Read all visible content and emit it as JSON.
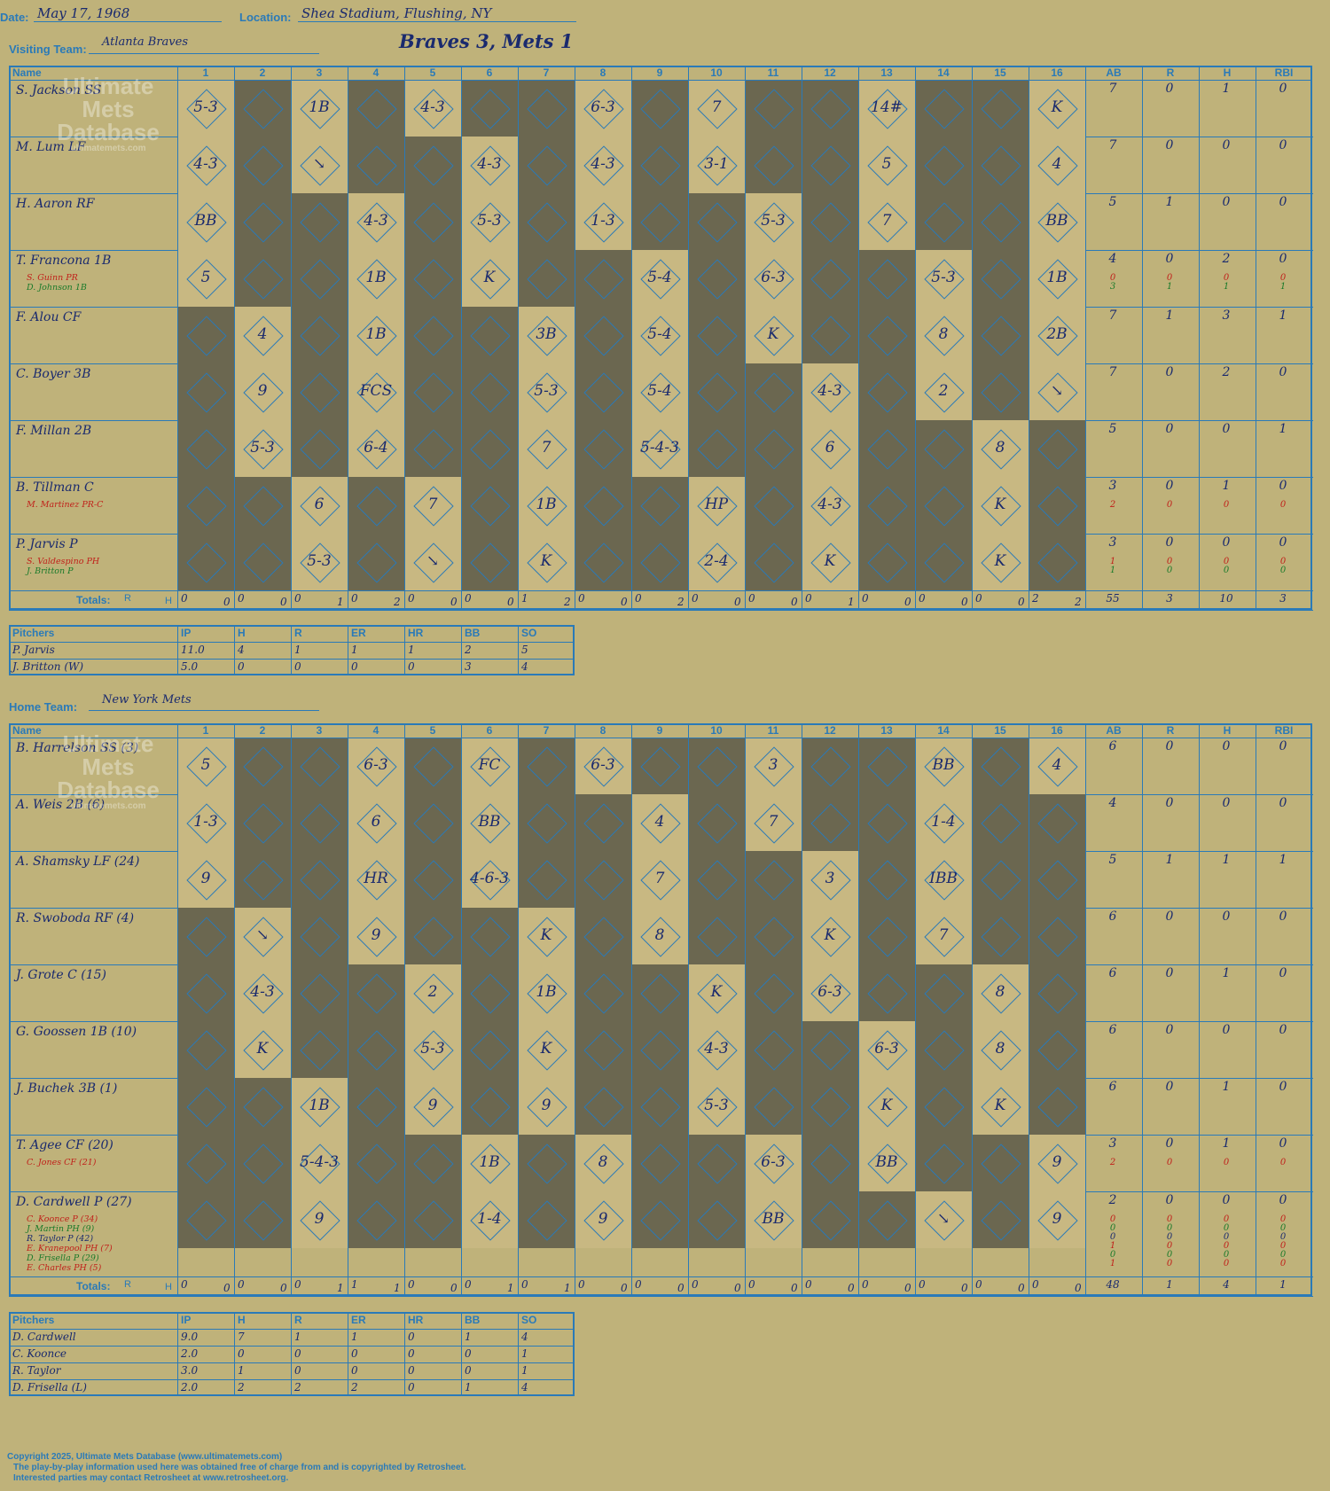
{
  "header": {
    "date_label": "Date:",
    "date": "May 17, 1968",
    "location_label": "Location:",
    "location": "Shea Stadium, Flushing, NY",
    "visiting_label": "Visiting Team:",
    "visiting_team": "Atlanta Braves",
    "home_label": "Home Team:",
    "home_team": "New York Mets",
    "title": "Braves 3, Mets 1"
  },
  "watermark": {
    "line1": "Ultimate",
    "line2": "Mets",
    "line3": "Database",
    "url": "ultimatemets.com"
  },
  "grid_headers": {
    "name": "Name",
    "innings": [
      "1",
      "2",
      "3",
      "4",
      "5",
      "6",
      "7",
      "8",
      "9",
      "10",
      "11",
      "12",
      "13",
      "14",
      "15",
      "16"
    ],
    "stats": [
      "AB",
      "R",
      "H",
      "RBI"
    ],
    "totals": "Totals:",
    "r": "R",
    "h": "H"
  },
  "visitors": {
    "players": [
      {
        "name": "S. Jackson SS",
        "subs": [],
        "stats": [
          [
            "7",
            "0",
            "1",
            "0"
          ]
        ]
      },
      {
        "name": "M. Lum LF",
        "subs": [],
        "stats": [
          [
            "7",
            "0",
            "0",
            "0"
          ]
        ]
      },
      {
        "name": "H. Aaron RF",
        "subs": [],
        "stats": [
          [
            "5",
            "1",
            "0",
            "0"
          ]
        ]
      },
      {
        "name": "T. Francona 1B",
        "subs": [
          {
            "name": "S. Guinn PR",
            "color": "#c0201a"
          },
          {
            "name": "D. Johnson 1B",
            "color": "#1a7a2a"
          }
        ],
        "stats": [
          [
            "4",
            "0",
            "2",
            "0"
          ],
          [
            "0",
            "0",
            "0",
            "0"
          ],
          [
            "3",
            "1",
            "1",
            "1"
          ]
        ]
      },
      {
        "name": "F. Alou CF",
        "subs": [],
        "stats": [
          [
            "7",
            "1",
            "3",
            "1"
          ]
        ]
      },
      {
        "name": "C. Boyer 3B",
        "subs": [],
        "stats": [
          [
            "7",
            "0",
            "2",
            "0"
          ]
        ]
      },
      {
        "name": "F. Millan 2B",
        "subs": [],
        "stats": [
          [
            "5",
            "0",
            "0",
            "1"
          ]
        ]
      },
      {
        "name": "B. Tillman C",
        "subs": [
          {
            "name": "M. Martinez PR-C",
            "color": "#c0201a"
          }
        ],
        "stats": [
          [
            "3",
            "0",
            "1",
            "0"
          ],
          [
            "2",
            "0",
            "0",
            "0"
          ]
        ]
      },
      {
        "name": "P. Jarvis P",
        "subs": [
          {
            "name": "S. Valdespino PH",
            "color": "#c0201a"
          },
          {
            "name": "J. Britton P",
            "color": "#1a7a2a"
          }
        ],
        "stats": [
          [
            "3",
            "0",
            "0",
            "0"
          ],
          [
            "1",
            "0",
            "0",
            "0"
          ],
          [
            "1",
            "0",
            "0",
            "0"
          ]
        ]
      }
    ],
    "plays": [
      [
        [
          1,
          "5-3"
        ],
        [
          3,
          "1B"
        ],
        [
          5,
          "4-3"
        ],
        [
          8,
          "6-3"
        ],
        [
          10,
          "7"
        ],
        [
          13,
          "14#"
        ],
        [
          16,
          "K"
        ]
      ],
      [
        [
          1,
          "4-3"
        ],
        [
          3,
          "↘"
        ],
        [
          6,
          "4-3"
        ],
        [
          8,
          "4-3"
        ],
        [
          10,
          "3-1"
        ],
        [
          13,
          "5"
        ],
        [
          16,
          "4"
        ]
      ],
      [
        [
          1,
          "BB"
        ],
        [
          4,
          "4-3"
        ],
        [
          6,
          "5-3"
        ],
        [
          8,
          "1-3"
        ],
        [
          11,
          "5-3"
        ],
        [
          13,
          "7"
        ],
        [
          16,
          "BB"
        ]
      ],
      [
        [
          1,
          "5"
        ],
        [
          4,
          "1B"
        ],
        [
          6,
          "K"
        ],
        [
          9,
          "5-4"
        ],
        [
          11,
          "6-3"
        ],
        [
          14,
          "5-3"
        ],
        [
          16,
          "1B"
        ]
      ],
      [
        [
          2,
          "4"
        ],
        [
          4,
          "1B"
        ],
        [
          7,
          "3B"
        ],
        [
          9,
          "5-4"
        ],
        [
          11,
          "K"
        ],
        [
          14,
          "8"
        ],
        [
          16,
          "2B"
        ]
      ],
      [
        [
          2,
          "9"
        ],
        [
          4,
          "FCS"
        ],
        [
          7,
          "5-3"
        ],
        [
          9,
          "5-4"
        ],
        [
          12,
          "4-3"
        ],
        [
          14,
          "2"
        ],
        [
          16,
          "↘"
        ]
      ],
      [
        [
          2,
          "5-3"
        ],
        [
          4,
          "6-4"
        ],
        [
          7,
          "7"
        ],
        [
          9,
          "5-4-3"
        ],
        [
          12,
          "6"
        ],
        [
          15,
          "8"
        ]
      ],
      [
        [
          3,
          "6"
        ],
        [
          5,
          "7"
        ],
        [
          7,
          "1B"
        ],
        [
          10,
          "HP"
        ],
        [
          12,
          "4-3"
        ],
        [
          15,
          "K"
        ]
      ],
      [
        [
          3,
          "5-3"
        ],
        [
          5,
          "↘"
        ],
        [
          7,
          "K"
        ],
        [
          10,
          "2-4"
        ],
        [
          12,
          "K"
        ],
        [
          15,
          "K"
        ]
      ]
    ],
    "totals": {
      "innings": [
        [
          "0",
          "0"
        ],
        [
          "0",
          "0"
        ],
        [
          "0",
          "1"
        ],
        [
          "0",
          "2"
        ],
        [
          "0",
          "0"
        ],
        [
          "0",
          "0"
        ],
        [
          "1",
          "2"
        ],
        [
          "0",
          "0"
        ],
        [
          "0",
          "2"
        ],
        [
          "0",
          "0"
        ],
        [
          "0",
          "0"
        ],
        [
          "0",
          "1"
        ],
        [
          "0",
          "0"
        ],
        [
          "0",
          "0"
        ],
        [
          "0",
          "0"
        ],
        [
          "2",
          "2"
        ]
      ],
      "stats": [
        "55",
        "3",
        "10",
        "3"
      ]
    },
    "pitchers": {
      "headers": [
        "Pitchers",
        "IP",
        "H",
        "R",
        "ER",
        "HR",
        "BB",
        "SO"
      ],
      "rows": [
        [
          "P. Jarvis",
          "11.0",
          "4",
          "1",
          "1",
          "1",
          "2",
          "5"
        ],
        [
          "J. Britton (W)",
          "5.0",
          "0",
          "0",
          "0",
          "0",
          "3",
          "4"
        ]
      ]
    }
  },
  "home": {
    "players": [
      {
        "name": "B. Harrelson SS (3)",
        "subs": [],
        "stats": [
          [
            "6",
            "0",
            "0",
            "0"
          ]
        ]
      },
      {
        "name": "A. Weis 2B (6)",
        "subs": [],
        "stats": [
          [
            "4",
            "0",
            "0",
            "0"
          ]
        ]
      },
      {
        "name": "A. Shamsky LF (24)",
        "subs": [],
        "stats": [
          [
            "5",
            "1",
            "1",
            "1"
          ]
        ]
      },
      {
        "name": "R. Swoboda RF (4)",
        "subs": [],
        "stats": [
          [
            "6",
            "0",
            "0",
            "0"
          ]
        ]
      },
      {
        "name": "J. Grote C (15)",
        "subs": [],
        "stats": [
          [
            "6",
            "0",
            "1",
            "0"
          ]
        ]
      },
      {
        "name": "G. Goossen 1B (10)",
        "subs": [],
        "stats": [
          [
            "6",
            "0",
            "0",
            "0"
          ]
        ]
      },
      {
        "name": "J. Buchek 3B (1)",
        "subs": [],
        "stats": [
          [
            "6",
            "0",
            "1",
            "0"
          ]
        ]
      },
      {
        "name": "T. Agee CF (20)",
        "subs": [
          {
            "name": "C. Jones CF (21)",
            "color": "#c0201a"
          }
        ],
        "stats": [
          [
            "3",
            "0",
            "1",
            "0"
          ],
          [
            "2",
            "0",
            "0",
            "0"
          ]
        ]
      },
      {
        "name": "D. Cardwell P (27)",
        "subs": [
          {
            "name": "C. Koonce P (34)",
            "color": "#c0201a"
          },
          {
            "name": "J. Martin PH (9)",
            "color": "#1a7a2a"
          },
          {
            "name": "R. Taylor P (42)",
            "color": "#1a2a6e"
          },
          {
            "name": "E. Kranepool PH (7)",
            "color": "#c0201a"
          },
          {
            "name": "D. Frisella P (29)",
            "color": "#1a7a2a"
          },
          {
            "name": "E. Charles PH (5)",
            "color": "#c0201a"
          }
        ],
        "stats": [
          [
            "2",
            "0",
            "0",
            "0"
          ],
          [
            "0",
            "0",
            "0",
            "0"
          ],
          [
            "0",
            "0",
            "0",
            "0"
          ],
          [
            "0",
            "0",
            "0",
            "0"
          ],
          [
            "1",
            "0",
            "0",
            "0"
          ],
          [
            "0",
            "0",
            "0",
            "0"
          ],
          [
            "1",
            "0",
            "0",
            "0"
          ]
        ]
      }
    ],
    "plays": [
      [
        [
          1,
          "5"
        ],
        [
          4,
          "6-3"
        ],
        [
          6,
          "FC"
        ],
        [
          8,
          "6-3"
        ],
        [
          11,
          "3"
        ],
        [
          14,
          "BB"
        ],
        [
          16,
          "4"
        ]
      ],
      [
        [
          1,
          "1-3"
        ],
        [
          4,
          "6"
        ],
        [
          6,
          "BB"
        ],
        [
          9,
          "4"
        ],
        [
          11,
          "7"
        ],
        [
          14,
          "1-4"
        ]
      ],
      [
        [
          1,
          "9"
        ],
        [
          4,
          "HR"
        ],
        [
          6,
          "4-6-3"
        ],
        [
          9,
          "7"
        ],
        [
          12,
          "3"
        ],
        [
          14,
          "IBB"
        ]
      ],
      [
        [
          2,
          "↘"
        ],
        [
          4,
          "9"
        ],
        [
          7,
          "K"
        ],
        [
          9,
          "8"
        ],
        [
          12,
          "K"
        ],
        [
          14,
          "7"
        ]
      ],
      [
        [
          2,
          "4-3"
        ],
        [
          5,
          "2"
        ],
        [
          7,
          "1B"
        ],
        [
          10,
          "K"
        ],
        [
          12,
          "6-3"
        ],
        [
          15,
          "8"
        ]
      ],
      [
        [
          2,
          "K"
        ],
        [
          5,
          "5-3"
        ],
        [
          7,
          "K"
        ],
        [
          10,
          "4-3"
        ],
        [
          13,
          "6-3"
        ],
        [
          15,
          "8"
        ]
      ],
      [
        [
          3,
          "1B"
        ],
        [
          5,
          "9"
        ],
        [
          7,
          "9"
        ],
        [
          10,
          "5-3"
        ],
        [
          13,
          "K"
        ],
        [
          15,
          "K"
        ]
      ],
      [
        [
          3,
          "5-4-3"
        ],
        [
          6,
          "1B"
        ],
        [
          8,
          "8"
        ],
        [
          11,
          "6-3"
        ],
        [
          13,
          "BB"
        ],
        [
          16,
          "9"
        ]
      ],
      [
        [
          3,
          "9"
        ],
        [
          6,
          "1-4"
        ],
        [
          8,
          "9"
        ],
        [
          11,
          "BB"
        ],
        [
          14,
          "↘"
        ],
        [
          16,
          "9"
        ]
      ]
    ],
    "totals": {
      "innings": [
        [
          "0",
          "0"
        ],
        [
          "0",
          "0"
        ],
        [
          "0",
          "1"
        ],
        [
          "1",
          "1"
        ],
        [
          "0",
          "0"
        ],
        [
          "0",
          "1"
        ],
        [
          "0",
          "1"
        ],
        [
          "0",
          "0"
        ],
        [
          "0",
          "0"
        ],
        [
          "0",
          "0"
        ],
        [
          "0",
          "0"
        ],
        [
          "0",
          "0"
        ],
        [
          "0",
          "0"
        ],
        [
          "0",
          "0"
        ],
        [
          "0",
          "0"
        ],
        [
          "0",
          "0"
        ]
      ],
      "stats": [
        "48",
        "1",
        "4",
        "1"
      ]
    },
    "pitchers": {
      "headers": [
        "Pitchers",
        "IP",
        "H",
        "R",
        "ER",
        "HR",
        "BB",
        "SO"
      ],
      "rows": [
        [
          "D. Cardwell",
          "9.0",
          "7",
          "1",
          "1",
          "0",
          "1",
          "4"
        ],
        [
          "C. Koonce",
          "2.0",
          "0",
          "0",
          "0",
          "0",
          "0",
          "1"
        ],
        [
          "R. Taylor",
          "3.0",
          "1",
          "0",
          "0",
          "0",
          "0",
          "1"
        ],
        [
          "D. Frisella (L)",
          "2.0",
          "2",
          "2",
          "2",
          "0",
          "1",
          "4"
        ]
      ]
    }
  },
  "footer": {
    "line1": "Copyright 2025, Ultimate Mets Database (www.ultimatemets.com)",
    "line2": "The play-by-play information used here was obtained free of charge from and is copyrighted by Retrosheet.",
    "line3": "Interested parties may contact Retrosheet at www.retrosheet.org."
  },
  "colors": {
    "background": "#bfb27a",
    "grid": "#2a7ab8",
    "ink": "#1a2a6e",
    "dark_cell": "#6b6750",
    "light_cell": "#c8b882"
  }
}
